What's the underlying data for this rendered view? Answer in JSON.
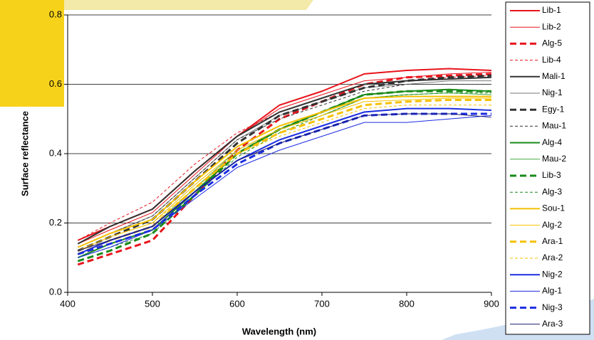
{
  "chart_data": {
    "type": "line",
    "xlabel": "Wavelength (nm)",
    "ylabel": "Surface reflectance",
    "x": [
      412,
      450,
      500,
      550,
      600,
      650,
      700,
      750,
      800,
      850,
      900
    ],
    "xlim": [
      400,
      900
    ],
    "xticks": [
      400,
      500,
      600,
      700,
      800,
      900
    ],
    "ylim": [
      0,
      0.8
    ],
    "yticks": [
      {
        "value": 0,
        "label": "0.0"
      },
      0.2,
      0.4,
      0.6,
      0.8
    ],
    "grid": true,
    "legend": "right",
    "series": [
      {
        "name": "Lib-1",
        "color": "#e8141c",
        "width": 2,
        "dashed": false,
        "values": [
          0.15,
          0.19,
          0.24,
          0.35,
          0.45,
          0.54,
          0.58,
          0.63,
          0.64,
          0.645,
          0.64
        ]
      },
      {
        "name": "Lib-2",
        "color": "#e8141c",
        "width": 1,
        "dashed": false,
        "values": [
          0.14,
          0.18,
          0.23,
          0.34,
          0.45,
          0.53,
          0.57,
          0.61,
          0.62,
          0.63,
          0.635
        ]
      },
      {
        "name": "Alg-5",
        "color": "#e8141c",
        "width": 3,
        "dashed": true,
        "values": [
          0.08,
          0.11,
          0.15,
          0.28,
          0.41,
          0.5,
          0.55,
          0.6,
          0.62,
          0.625,
          0.63
        ]
      },
      {
        "name": "Lib-4",
        "color": "#e8141c",
        "width": 1,
        "dashed": true,
        "values": [
          0.15,
          0.2,
          0.26,
          0.37,
          0.46,
          0.52,
          0.56,
          0.6,
          0.61,
          0.62,
          0.625
        ]
      },
      {
        "name": "Mali-1",
        "color": "#333333",
        "width": 2,
        "dashed": false,
        "values": [
          0.14,
          0.19,
          0.24,
          0.35,
          0.45,
          0.52,
          0.56,
          0.6,
          0.61,
          0.615,
          0.62
        ]
      },
      {
        "name": "Nig-1",
        "color": "#777777",
        "width": 1,
        "dashed": false,
        "values": [
          0.13,
          0.17,
          0.22,
          0.33,
          0.44,
          0.51,
          0.55,
          0.59,
          0.6,
          0.61,
          0.61
        ]
      },
      {
        "name": "Egy-1",
        "color": "#333333",
        "width": 3,
        "dashed": true,
        "values": [
          0.12,
          0.16,
          0.21,
          0.32,
          0.43,
          0.51,
          0.55,
          0.59,
          0.61,
          0.62,
          0.625
        ]
      },
      {
        "name": "Mau-1",
        "color": "#333333",
        "width": 1,
        "dashed": true,
        "values": [
          0.13,
          0.17,
          0.22,
          0.33,
          0.44,
          0.5,
          0.54,
          0.58,
          0.6,
          0.6,
          0.6
        ]
      },
      {
        "name": "Alg-4",
        "color": "#1a8a1a",
        "width": 2,
        "dashed": false,
        "values": [
          0.1,
          0.14,
          0.18,
          0.29,
          0.4,
          0.47,
          0.52,
          0.57,
          0.58,
          0.585,
          0.58
        ]
      },
      {
        "name": "Mau-2",
        "color": "#44aa44",
        "width": 1,
        "dashed": false,
        "values": [
          0.11,
          0.15,
          0.19,
          0.3,
          0.41,
          0.47,
          0.51,
          0.56,
          0.57,
          0.575,
          0.57
        ]
      },
      {
        "name": "Lib-3",
        "color": "#1a8a1a",
        "width": 3,
        "dashed": true,
        "values": [
          0.09,
          0.12,
          0.17,
          0.28,
          0.4,
          0.47,
          0.52,
          0.57,
          0.58,
          0.58,
          0.58
        ]
      },
      {
        "name": "Alg-3",
        "color": "#1a8a1a",
        "width": 1,
        "dashed": true,
        "values": [
          0.1,
          0.13,
          0.17,
          0.28,
          0.39,
          0.46,
          0.51,
          0.56,
          0.57,
          0.575,
          0.575
        ]
      },
      {
        "name": "Sou-1",
        "color": "#f5c000",
        "width": 2,
        "dashed": false,
        "values": [
          0.13,
          0.17,
          0.21,
          0.32,
          0.42,
          0.48,
          0.52,
          0.56,
          0.565,
          0.565,
          0.565
        ]
      },
      {
        "name": "Alg-2",
        "color": "#f5c000",
        "width": 1,
        "dashed": false,
        "values": [
          0.12,
          0.16,
          0.2,
          0.31,
          0.41,
          0.47,
          0.51,
          0.55,
          0.555,
          0.56,
          0.56
        ]
      },
      {
        "name": "Ara-1",
        "color": "#f5c000",
        "width": 3,
        "dashed": true,
        "values": [
          0.11,
          0.15,
          0.19,
          0.3,
          0.4,
          0.46,
          0.5,
          0.54,
          0.55,
          0.555,
          0.555
        ]
      },
      {
        "name": "Ara-2",
        "color": "#f5c000",
        "width": 1,
        "dashed": true,
        "values": [
          0.12,
          0.16,
          0.2,
          0.3,
          0.4,
          0.45,
          0.49,
          0.53,
          0.54,
          0.54,
          0.54
        ]
      },
      {
        "name": "Nig-2",
        "color": "#1c2de0",
        "width": 2,
        "dashed": false,
        "values": [
          0.11,
          0.15,
          0.19,
          0.29,
          0.38,
          0.44,
          0.48,
          0.52,
          0.53,
          0.53,
          0.525
        ]
      },
      {
        "name": "Alg-1",
        "color": "#1c2de0",
        "width": 1,
        "dashed": false,
        "values": [
          0.1,
          0.13,
          0.18,
          0.27,
          0.36,
          0.41,
          0.45,
          0.49,
          0.49,
          0.5,
          0.51
        ]
      },
      {
        "name": "Nig-3",
        "color": "#1c2de0",
        "width": 3,
        "dashed": true,
        "values": [
          0.11,
          0.14,
          0.18,
          0.28,
          0.37,
          0.43,
          0.47,
          0.51,
          0.515,
          0.515,
          0.515
        ]
      },
      {
        "name": "Ara-3",
        "color": "#1a1a6e",
        "width": 1,
        "dashed": false,
        "values": [
          0.12,
          0.15,
          0.19,
          0.29,
          0.38,
          0.43,
          0.47,
          0.51,
          0.515,
          0.515,
          0.505
        ]
      }
    ]
  }
}
